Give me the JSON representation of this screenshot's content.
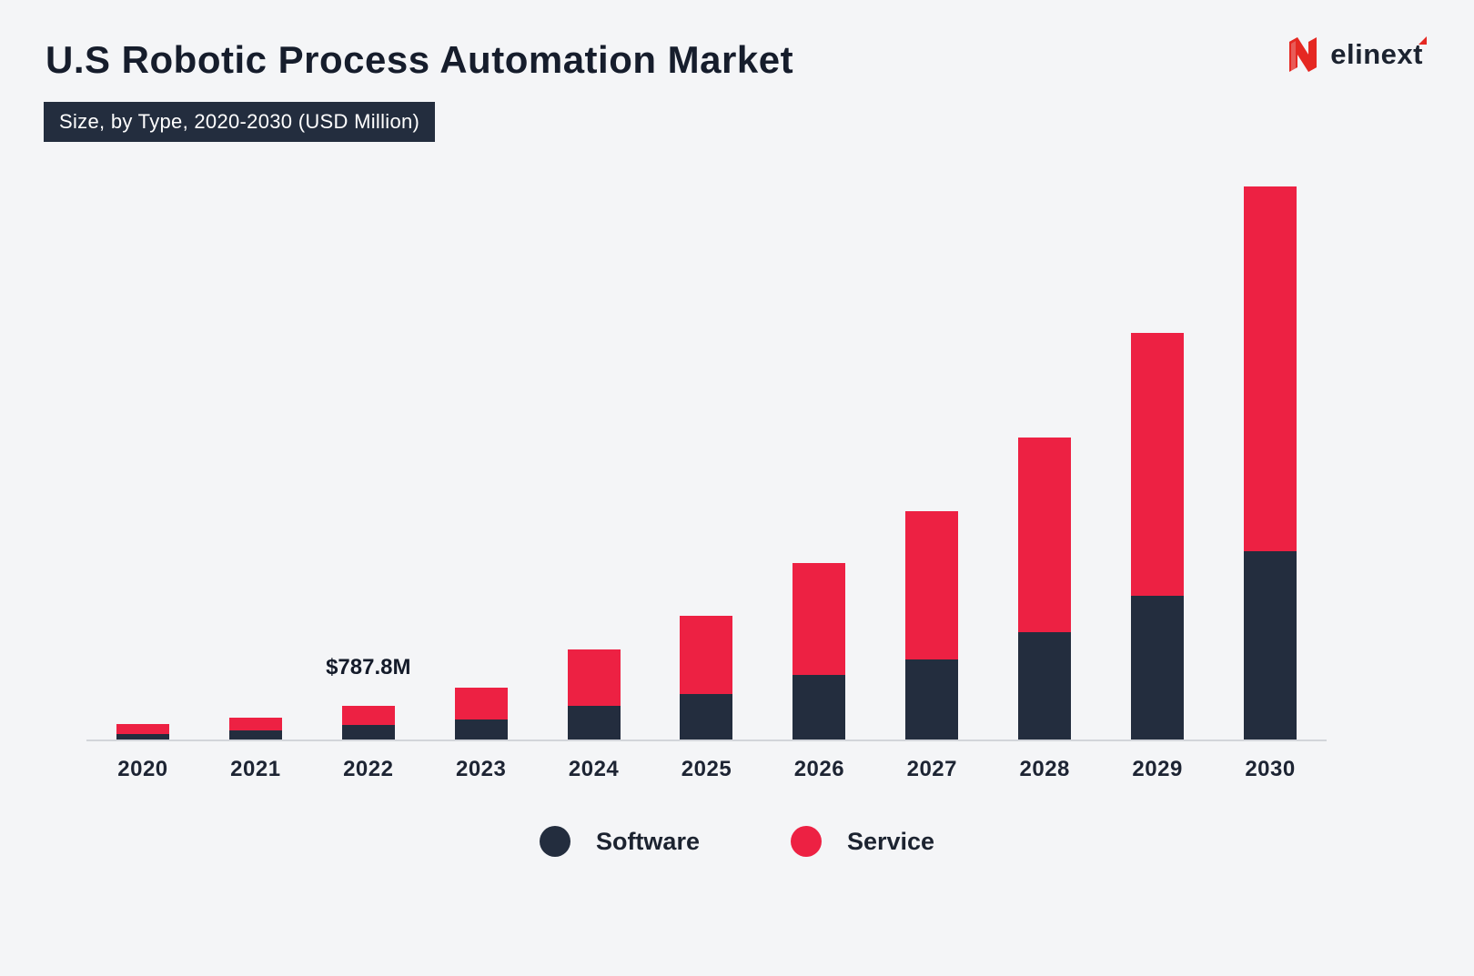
{
  "header": {
    "title": "U.S Robotic Process Automation Market",
    "subtitle_badge": "Size, by Type, 2020-2030 (USD Million)",
    "logo_text": "elinext"
  },
  "chart_data": {
    "type": "bar",
    "stacked": true,
    "title": "U.S Robotic Process Automation Market",
    "subtitle": "Size, by Type, 2020-2030 (USD Million)",
    "unit": "USD Million",
    "categories": [
      "2020",
      "2021",
      "2022",
      "2023",
      "2024",
      "2025",
      "2026",
      "2027",
      "2028",
      "2029",
      "2030"
    ],
    "series": [
      {
        "name": "Software",
        "color": "#232d3e",
        "values": [
          130,
          210,
          340,
          470,
          790,
          1065,
          1510,
          1875,
          2510,
          3365,
          4410
        ]
      },
      {
        "name": "Service",
        "color": "#ed2143",
        "values": [
          230,
          300,
          447.8,
          745,
          1320,
          1830,
          2620,
          3470,
          4560,
          6150,
          8540
        ]
      }
    ],
    "totals": [
      360,
      510,
      787.8,
      1215,
      2110,
      2895,
      4130,
      5345,
      7070,
      9515,
      12950
    ],
    "annotations": [
      {
        "category": "2022",
        "text": "$787.8M"
      }
    ],
    "ylim": [
      0,
      12950
    ],
    "grid": false,
    "legend_position": "bottom",
    "colors": {
      "background": "#f4f5f7",
      "axis_line": "#d2d5da",
      "software": "#232d3e",
      "service": "#ed2143"
    }
  },
  "legend": {
    "items": [
      {
        "label": "Software",
        "color": "#232d3e"
      },
      {
        "label": "Service",
        "color": "#ed2143"
      }
    ]
  }
}
